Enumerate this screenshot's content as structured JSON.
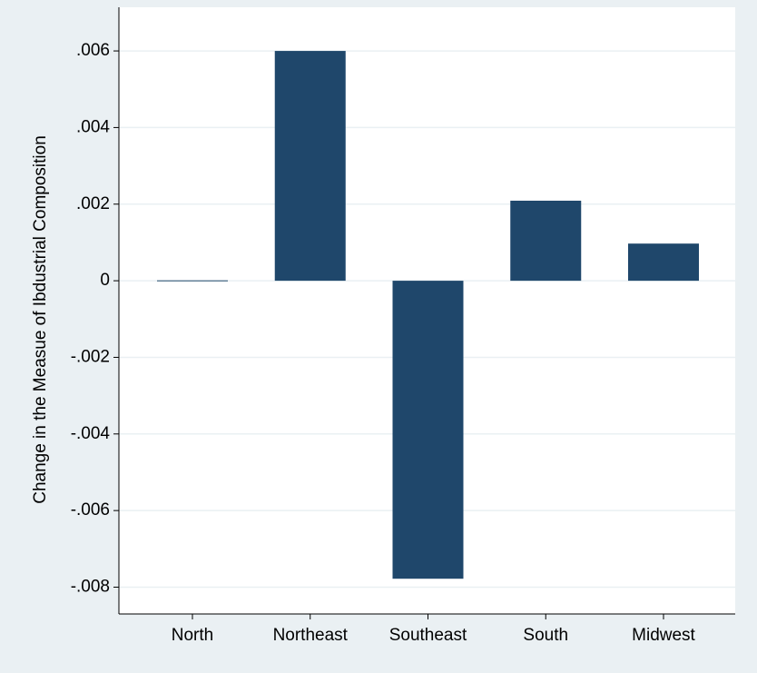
{
  "chart_data": {
    "type": "bar",
    "y_label": "Change in the Measue of Ibdustrial Composition",
    "categories": [
      "North",
      "Northeast",
      "Southeast",
      "South",
      "Midwest"
    ],
    "values": [
      1e-05,
      0.006,
      -0.00778,
      0.00209,
      0.00097
    ],
    "color": "#1f476b",
    "ylim": [
      -0.0087,
      0.00714
    ],
    "yticks": [
      {
        "value": -0.008,
        "label": "-.008"
      },
      {
        "value": -0.006,
        "label": "-.006"
      },
      {
        "value": -0.004,
        "label": "-.004"
      },
      {
        "value": -0.002,
        "label": "-.002"
      },
      0,
      {
        "value": 0.002,
        "label": ".002"
      },
      {
        "value": 0.004,
        "label": ".004"
      },
      {
        "value": 0.006,
        "label": ".006"
      }
    ],
    "grid": true
  }
}
